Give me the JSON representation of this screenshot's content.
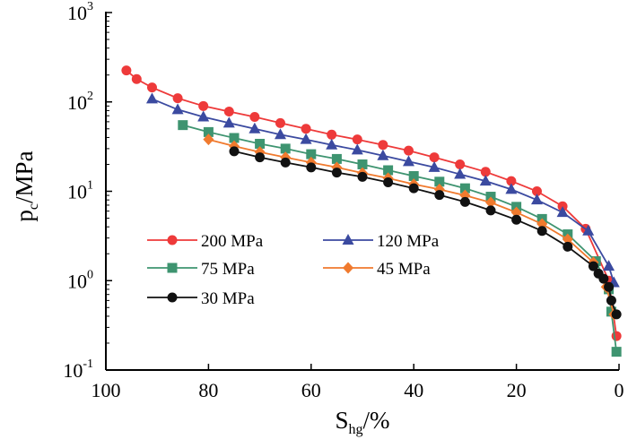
{
  "chart_data": {
    "type": "line",
    "title": "",
    "xlabel": {
      "main": "S",
      "sub": "hg",
      "tail": "/%"
    },
    "ylabel": {
      "main": "p",
      "sub": "c",
      "tail": "/MPa"
    },
    "xlim": [
      100,
      0
    ],
    "ylim": [
      0.1,
      1000
    ],
    "yscale": "log",
    "xticks": [
      "100",
      "80",
      "60",
      "40",
      "20",
      "0"
    ],
    "yticks": [
      {
        "base": "10",
        "exp": "-1"
      },
      {
        "base": "10",
        "exp": "0"
      },
      {
        "base": "10",
        "exp": "1"
      },
      {
        "base": "10",
        "exp": "2"
      },
      {
        "base": "10",
        "exp": "3"
      }
    ],
    "grid": false,
    "legend_position": "lower-left",
    "series": [
      {
        "name": "200 MPa",
        "color": "#ee3a3a",
        "marker": "circle",
        "x": [
          96,
          94,
          91,
          86,
          81,
          76,
          71,
          66,
          61,
          56,
          51,
          46,
          41,
          36,
          31,
          26,
          21,
          16,
          11,
          6.5,
          2,
          0.5
        ],
        "y": [
          225,
          180,
          145,
          110,
          90,
          78,
          68,
          58,
          50,
          43,
          38,
          33,
          28.5,
          24,
          20,
          16.5,
          13,
          10,
          6.8,
          3.8,
          1.0,
          0.24
        ]
      },
      {
        "name": "120 MPa",
        "color": "#3b4aa0",
        "marker": "triangle",
        "x": [
          91,
          86,
          81,
          76,
          71,
          66,
          61,
          56,
          51,
          46,
          41,
          36,
          31,
          26,
          21,
          16,
          11,
          6,
          2,
          1
        ],
        "y": [
          108,
          82,
          68,
          58,
          50,
          43,
          38,
          33,
          29,
          25,
          21.5,
          18.5,
          15.5,
          13,
          10.5,
          8,
          5.8,
          3.6,
          1.45,
          0.95
        ]
      },
      {
        "name": "75 MPa",
        "color": "#3e9470",
        "marker": "square",
        "x": [
          85,
          80,
          75,
          70,
          65,
          60,
          55,
          50,
          45,
          40,
          35,
          30,
          25,
          20,
          15,
          10,
          4.5,
          2,
          1.5,
          0.5
        ],
        "y": [
          55,
          46,
          39.5,
          34,
          30,
          26,
          23,
          20,
          17.2,
          14.8,
          12.8,
          10.8,
          8.7,
          6.7,
          4.9,
          3.3,
          1.65,
          0.8,
          0.45,
          0.16
        ]
      },
      {
        "name": "45 MPa",
        "color": "#f07a2e",
        "marker": "diamond",
        "x": [
          80,
          75,
          70,
          65,
          60,
          55,
          50,
          45,
          40,
          35,
          30,
          25,
          20,
          15,
          10,
          5,
          2.5,
          1
        ],
        "y": [
          38,
          32,
          27.5,
          24,
          21,
          18.5,
          16,
          14,
          12,
          10.5,
          9,
          7.5,
          5.8,
          4.3,
          2.9,
          1.6,
          0.85,
          0.42
        ]
      },
      {
        "name": "30 MPa",
        "color": "#111111",
        "marker": "circle",
        "x": [
          75,
          70,
          65,
          60,
          55,
          50,
          45,
          40,
          35,
          30,
          25,
          20,
          15,
          10,
          5,
          4,
          3,
          2,
          1.5,
          0.5
        ],
        "y": [
          28,
          24,
          21,
          18.5,
          16.2,
          14.5,
          12.6,
          10.8,
          9.1,
          7.6,
          6.1,
          4.8,
          3.6,
          2.4,
          1.45,
          1.2,
          1.05,
          0.85,
          0.6,
          0.42
        ]
      }
    ]
  }
}
